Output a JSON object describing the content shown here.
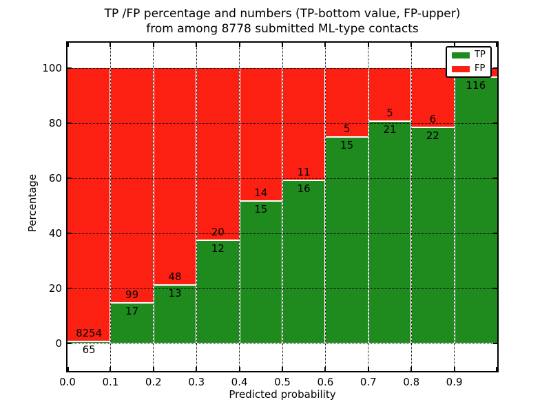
{
  "figure": {
    "title_line1": "TP /FP percentage and numbers (TP-bottom value, FP-upper)",
    "title_line2": "from among 8778 submitted ML-type contacts",
    "background": "#ffffff"
  },
  "chart_data": {
    "type": "bar",
    "stacked": true,
    "normalized": "each bin scaled to 100%",
    "title": "TP /FP percentage and numbers (TP-bottom value, FP-upper) from among 8778 submitted ML-type contacts",
    "xlabel": "Predicted probability",
    "ylabel": "Percentage",
    "bin_width": 0.1,
    "x_bin_starts": [
      0.0,
      0.1,
      0.2,
      0.3,
      0.4,
      0.5,
      0.6,
      0.7,
      0.8,
      0.9
    ],
    "x_tick_labels": [
      "0.0",
      "0.1",
      "0.2",
      "0.3",
      "0.4",
      "0.5",
      "0.6",
      "0.7",
      "0.8",
      "0.9"
    ],
    "y_ticks": [
      0,
      20,
      40,
      60,
      80,
      100
    ],
    "y_tick_labels": [
      "0",
      "20",
      "40",
      "60",
      "80",
      "100"
    ],
    "xlim": [
      0.0,
      1.0
    ],
    "grid": true,
    "grid_style": "dotted",
    "legend_position": "upper right",
    "series": [
      {
        "name": "TP",
        "color": "#1f8b1f",
        "counts": [
          65,
          17,
          13,
          12,
          15,
          16,
          15,
          21,
          22,
          116
        ]
      },
      {
        "name": "FP",
        "color": "#fc2013",
        "counts": [
          8254,
          99,
          48,
          20,
          14,
          11,
          5,
          5,
          6,
          null
        ]
      }
    ],
    "tp_percent_heights": [
      0.8,
      14.7,
      21.3,
      37.5,
      51.7,
      59.3,
      75.0,
      80.8,
      78.6,
      96.7
    ],
    "bar_value_labels": {
      "fp": [
        "8254",
        "99",
        "48",
        "20",
        "14",
        "11",
        "5",
        "5",
        "6",
        ""
      ],
      "tp": [
        "65",
        "17",
        "13",
        "12",
        "15",
        "16",
        "15",
        "21",
        "22",
        "116"
      ]
    },
    "legend": {
      "items": [
        {
          "label": "TP",
          "color": "#1f8b1f"
        },
        {
          "label": "FP",
          "color": "#fc2013"
        }
      ]
    }
  }
}
